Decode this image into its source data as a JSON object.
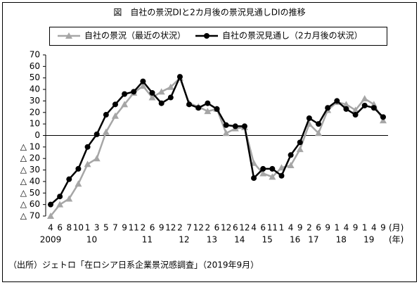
{
  "chart_data": {
    "type": "line",
    "title": "図　自社の景況DIと2カ月後の景況見通しDIの推移",
    "categories": [
      "4",
      "6",
      "8",
      "10",
      "1",
      "3",
      "5",
      "7",
      "9",
      "11",
      "2",
      "6",
      "9",
      "12",
      "2",
      "7",
      "12",
      "2",
      "6",
      "12",
      "6",
      "12",
      "4",
      "6",
      "11",
      "1",
      "4",
      "9",
      "2",
      "6",
      "9",
      "1",
      "4",
      "9",
      "1",
      "4",
      "9"
    ],
    "years": [
      "2009",
      null,
      null,
      null,
      "10",
      null,
      null,
      null,
      null,
      null,
      "11",
      null,
      null,
      null,
      "12",
      null,
      null,
      "13",
      null,
      null,
      "14",
      null,
      null,
      "15",
      null,
      null,
      "16",
      null,
      "17",
      null,
      null,
      "18",
      null,
      null,
      "19",
      null,
      null
    ],
    "x_unit": "(月)",
    "year_unit": "(年)",
    "series": [
      {
        "name": "自社の景況（最近の状況）",
        "color": "#a6a6a6",
        "marker": "triangle",
        "values": [
          -70,
          -60,
          -55,
          -42,
          -25,
          -20,
          3,
          17,
          27,
          37,
          43,
          33,
          38,
          42,
          50,
          28,
          25,
          21,
          23,
          2,
          6,
          7,
          -24,
          -33,
          -36,
          -28,
          -26,
          -12,
          10,
          2,
          22,
          29,
          27,
          22,
          32,
          27,
          13
        ]
      },
      {
        "name": "自社の景況見通し（2カ月後の状況）",
        "color": "#000000",
        "marker": "circle",
        "values": [
          -60,
          -53,
          -38,
          -29,
          -10,
          1,
          18,
          27,
          36,
          38,
          47,
          37,
          28,
          33,
          51,
          27,
          24,
          28,
          23,
          9,
          8,
          8,
          -37,
          -29,
          -29,
          -35,
          -17,
          -6,
          15,
          10,
          24,
          30,
          23,
          18,
          26,
          24,
          16
        ]
      }
    ],
    "ylim": [
      -70,
      70
    ],
    "yticks": [
      {
        "value": -70,
        "label": "△ 70"
      },
      {
        "value": -60,
        "label": "△ 60"
      },
      {
        "value": -50,
        "label": "△ 50"
      },
      {
        "value": -40,
        "label": "△ 40"
      },
      {
        "value": -30,
        "label": "△ 30"
      },
      {
        "value": -20,
        "label": "△ 20"
      },
      {
        "value": -10,
        "label": "△ 10"
      },
      0,
      10,
      20,
      30,
      40,
      50,
      60,
      70
    ],
    "source": "（出所）ジェトロ「在ロシア日系企業景況感調査」（2019年9月）"
  }
}
